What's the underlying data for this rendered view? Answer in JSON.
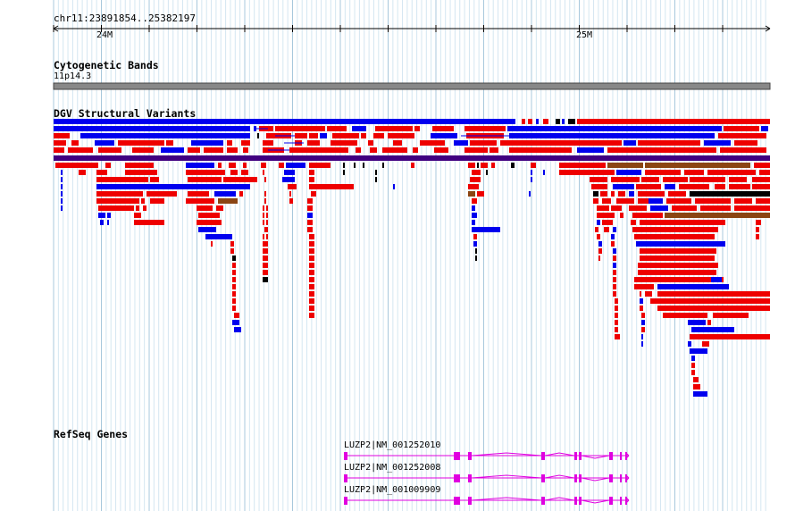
{
  "locus": "chr11:23891854..25382197",
  "ruler": {
    "ticks": [
      "24M",
      "25M"
    ]
  },
  "tracks": {
    "cytoband": {
      "title": "Cytogenetic Bands",
      "band": "11p14.3"
    },
    "dgv": {
      "title": "DGV Structural Variants",
      "colors": {
        "gain": "#0000ee",
        "loss": "#ee0000",
        "gain_loss": "#8b4513",
        "complex": "#000000",
        "merged": "#400080"
      }
    },
    "refseq": {
      "title": "RefSeq Genes",
      "gene_color": "#e000e0",
      "genes": [
        {
          "label": "LUZP2|NM_001252010"
        },
        {
          "label": "LUZP2|NM_001252008"
        },
        {
          "label": "LUZP2|NM_001009909"
        }
      ]
    }
  }
}
